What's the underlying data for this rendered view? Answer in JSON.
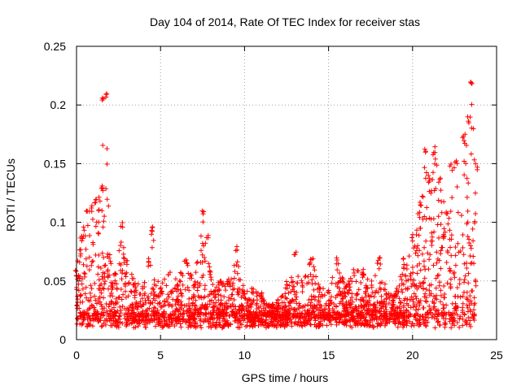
{
  "chart_data": {
    "type": "scatter",
    "title": "Day 104 of 2014, Rate Of TEC Index for receiver stas",
    "xlabel": "GPS time / hours",
    "ylabel": "ROTI / TECUs",
    "xlim": [
      0,
      25
    ],
    "ylim": [
      0,
      0.25
    ],
    "x_ticks": [
      0,
      5,
      10,
      15,
      20,
      25
    ],
    "x_tick_labels": [
      "0",
      "5",
      "10",
      "15",
      "20",
      "25"
    ],
    "y_ticks": [
      0,
      0.05,
      0.1,
      0.15,
      0.2,
      0.25
    ],
    "y_tick_labels": [
      "0",
      "0.05",
      "0.1",
      "0.15",
      "0.2",
      "0.25"
    ],
    "grid": true,
    "series": [
      {
        "name": "ROTI",
        "color": "#ff0000",
        "marker": "plus",
        "envelope": [
          [
            0.0,
            0.06
          ],
          [
            0.3,
            0.09
          ],
          [
            0.6,
            0.11
          ],
          [
            0.9,
            0.115
          ],
          [
            1.2,
            0.12
          ],
          [
            1.5,
            0.13
          ],
          [
            1.6,
            0.21
          ],
          [
            1.75,
            0.21
          ],
          [
            2.0,
            0.07
          ],
          [
            2.3,
            0.06
          ],
          [
            2.7,
            0.1
          ],
          [
            3.0,
            0.07
          ],
          [
            3.5,
            0.05
          ],
          [
            4.0,
            0.045
          ],
          [
            4.5,
            0.097
          ],
          [
            5.0,
            0.045
          ],
          [
            5.5,
            0.06
          ],
          [
            6.0,
            0.05
          ],
          [
            6.5,
            0.07
          ],
          [
            7.0,
            0.05
          ],
          [
            7.5,
            0.11
          ],
          [
            7.8,
            0.09
          ],
          [
            8.0,
            0.06
          ],
          [
            8.5,
            0.05
          ],
          [
            9.0,
            0.05
          ],
          [
            9.5,
            0.08
          ],
          [
            10.0,
            0.04
          ],
          [
            10.5,
            0.045
          ],
          [
            11.0,
            0.04
          ],
          [
            11.5,
            0.03
          ],
          [
            12.0,
            0.035
          ],
          [
            12.5,
            0.05
          ],
          [
            13.0,
            0.075
          ],
          [
            13.5,
            0.05
          ],
          [
            14.0,
            0.07
          ],
          [
            14.5,
            0.045
          ],
          [
            15.0,
            0.045
          ],
          [
            15.5,
            0.07
          ],
          [
            16.0,
            0.045
          ],
          [
            16.5,
            0.06
          ],
          [
            17.0,
            0.06
          ],
          [
            17.5,
            0.05
          ],
          [
            18.0,
            0.07
          ],
          [
            18.5,
            0.04
          ],
          [
            19.0,
            0.04
          ],
          [
            19.5,
            0.07
          ],
          [
            20.0,
            0.09
          ],
          [
            20.5,
            0.12
          ],
          [
            20.8,
            0.165
          ],
          [
            21.0,
            0.14
          ],
          [
            21.3,
            0.165
          ],
          [
            21.6,
            0.14
          ],
          [
            22.0,
            0.11
          ],
          [
            22.3,
            0.15
          ],
          [
            22.6,
            0.155
          ],
          [
            23.0,
            0.175
          ],
          [
            23.3,
            0.19
          ],
          [
            23.5,
            0.22
          ],
          [
            23.8,
            0.15
          ]
        ]
      }
    ]
  }
}
